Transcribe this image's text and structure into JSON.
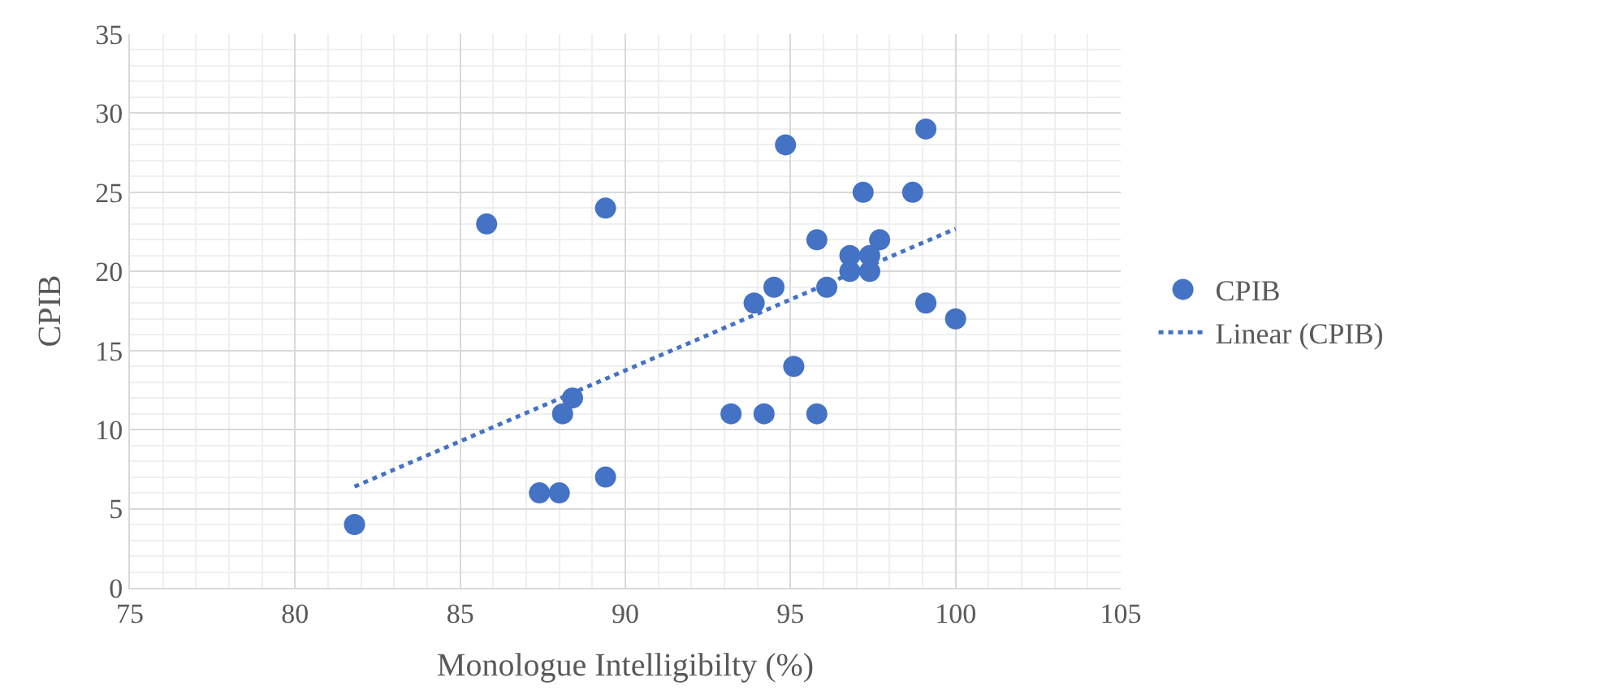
{
  "chart_data": {
    "type": "scatter",
    "xlabel": "Monologue Intelligibilty (%)",
    "ylabel": "CPIB",
    "xlim": [
      75,
      105
    ],
    "xticks": [
      75,
      80,
      85,
      90,
      95,
      100,
      105
    ],
    "ylim": [
      0,
      35
    ],
    "yticks": [
      0,
      5,
      10,
      15,
      20,
      25,
      30,
      35
    ],
    "grid": true,
    "legend": "right",
    "series": [
      {
        "name": "CPIB",
        "color": "#4472c4",
        "marker": "circle",
        "x": [
          81.8,
          85.8,
          89.4,
          94.85,
          99.1,
          97.2,
          98.7,
          95.8,
          97.7,
          96.8,
          97.4,
          96.8,
          97.4,
          96.1,
          94.5,
          93.9,
          99.1,
          100.0,
          95.1,
          88.4,
          88.1,
          93.2,
          94.2,
          95.8,
          89.4,
          87.4,
          88.0
        ],
        "values": [
          4,
          23,
          24,
          28,
          29,
          25,
          25,
          22,
          22,
          21,
          21,
          20,
          20,
          19,
          19,
          18,
          18,
          17,
          14,
          12,
          11,
          11,
          11,
          11,
          7,
          6,
          6
        ]
      },
      {
        "name": "Linear (CPIB)",
        "color": "#4472c4",
        "type": "line",
        "line_style": "dotted",
        "x": [
          81.8,
          100.0
        ],
        "values": [
          6.4,
          22.7
        ]
      }
    ]
  }
}
